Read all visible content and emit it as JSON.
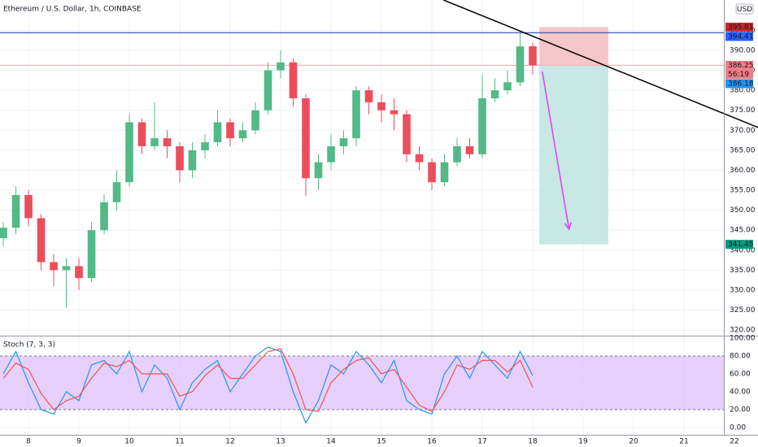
{
  "chart_data": {
    "type": "candlestick",
    "title": "Ethereum / U.S. Dollar, 1h, COINBASE",
    "currency": "USD",
    "x": [
      7.5,
      7.75,
      8,
      8.25,
      8.5,
      8.75,
      9,
      9.25,
      9.5,
      9.75,
      10,
      10.25,
      10.5,
      10.75,
      11,
      11.25,
      11.5,
      11.75,
      12,
      12.25,
      12.5,
      12.75,
      13,
      13.25,
      13.5,
      13.75,
      14,
      14.25,
      14.5,
      14.75,
      15,
      15.25,
      15.5,
      15.75,
      16,
      16.25,
      16.5,
      16.75,
      17,
      17.25,
      17.5,
      17.75,
      18
    ],
    "open": [
      343,
      345.6,
      353.8,
      348,
      337,
      335,
      336,
      333,
      345,
      352,
      357,
      372,
      366,
      368,
      366,
      360,
      365,
      367,
      372,
      368,
      370,
      375,
      385,
      387,
      378,
      358,
      362,
      366,
      368,
      380,
      377,
      375,
      374,
      364,
      362,
      357,
      362,
      366,
      364,
      378,
      380,
      382,
      391
    ],
    "high": [
      347,
      356,
      355,
      349,
      339,
      338,
      338,
      347,
      354,
      360,
      374,
      373,
      377,
      370,
      367,
      367,
      369,
      375,
      373,
      372,
      377,
      387,
      390,
      388,
      379,
      364,
      369,
      370,
      381,
      381,
      379,
      378,
      375,
      366,
      363,
      364,
      368,
      368,
      384,
      383,
      385,
      394.4,
      392
    ],
    "low": [
      341,
      344,
      346,
      335,
      331,
      325.6,
      330,
      332,
      344,
      350,
      356,
      364,
      365,
      363,
      357,
      358,
      363,
      366,
      366,
      367,
      369,
      374,
      383,
      376,
      353.5,
      355,
      360,
      364,
      366,
      374,
      372,
      370,
      362,
      360,
      355,
      356,
      361,
      363,
      363,
      377,
      379,
      381,
      384
    ],
    "close": [
      345.6,
      353.8,
      348,
      337,
      335,
      336,
      333,
      345,
      352,
      357,
      372,
      366,
      368,
      366,
      360,
      365,
      367,
      372,
      368,
      370,
      375,
      385,
      387,
      378,
      358,
      362,
      366,
      368,
      380,
      377,
      375,
      374,
      364,
      362,
      357,
      362,
      366,
      364,
      378,
      380,
      382,
      391,
      386.25
    ],
    "up_color": "#53b987",
    "down_color": "#eb4d5c",
    "xlim": [
      7.435,
      22.468
    ],
    "xticks": [
      8,
      9,
      10,
      11,
      12,
      13,
      14,
      15,
      16,
      17,
      18,
      19,
      20,
      21,
      22
    ],
    "ylim": [
      318.6,
      402.6
    ],
    "yticks": [
      {
        "value": 320,
        "label": "320.00"
      },
      {
        "value": 325,
        "label": "325.00"
      },
      {
        "value": 330,
        "label": "330.00"
      },
      {
        "value": 335,
        "label": "335.00"
      },
      {
        "value": 340,
        "label": "340.00"
      },
      {
        "value": 345,
        "label": "345.00"
      },
      {
        "value": 350,
        "label": "350.00"
      },
      {
        "value": 355,
        "label": "355.00"
      },
      {
        "value": 360,
        "label": "360.00"
      },
      {
        "value": 365,
        "label": "365.00"
      },
      {
        "value": 370,
        "label": "370.00"
      },
      {
        "value": 375,
        "label": "375.00"
      },
      {
        "value": 380,
        "label": "380.00"
      },
      {
        "value": 385,
        "label": "385.00"
      },
      {
        "value": 390,
        "label": "390.00"
      },
      {
        "value": 395,
        "label": "395.00"
      }
    ],
    "grid": true,
    "hlines": [
      {
        "value": 394.41,
        "color": "#3f51b5"
      },
      {
        "value": 386.25,
        "color": "#f4b6bb"
      }
    ],
    "price_labels": [
      {
        "value": 395.81,
        "color": "#c62828"
      },
      {
        "value": 394.41,
        "color": "#2962ff"
      },
      {
        "value": 386.25,
        "color": "#ef7c86",
        "countdown": "56:19"
      },
      {
        "value": 386.18,
        "color": "#2196f3"
      },
      {
        "value": 341.45,
        "color": "#089981"
      }
    ],
    "position": {
      "x": [
        18.13,
        19.5
      ],
      "stop": 395.81,
      "entry": 386.25,
      "target": 341.45,
      "stop_color": "#f6c7c9",
      "target_color": "#c7e8e4"
    },
    "trendline": {
      "x": [
        16.23,
        22.47
      ],
      "y": [
        402.6,
        370.7
      ],
      "color": "#000000"
    },
    "arrow": {
      "x": [
        18.19,
        18.72
      ],
      "y": [
        384.7,
        345.2
      ],
      "color": "#e040fb"
    },
    "indicator": {
      "title": "Stoch (7, 3, 3)",
      "ylim": [
        -8.2,
        101.8
      ],
      "yticks": [
        {
          "value": 0,
          "label": "0.00"
        },
        {
          "value": 20,
          "label": "20.00"
        },
        {
          "value": 40,
          "label": "40.00"
        },
        {
          "value": 60,
          "label": "60.00"
        },
        {
          "value": 80,
          "label": "80.00"
        },
        {
          "value": 100,
          "label": "100.00"
        }
      ],
      "band": [
        20,
        80
      ],
      "band_color": "#e1c4fb",
      "series": [
        {
          "color": "#2196f3",
          "values": [
            60,
            85,
            50,
            20,
            15,
            40,
            30,
            70,
            75,
            60,
            85,
            40,
            70,
            55,
            20,
            50,
            65,
            75,
            40,
            60,
            80,
            90,
            85,
            40,
            5,
            30,
            70,
            60,
            85,
            70,
            50,
            75,
            30,
            20,
            15,
            60,
            80,
            55,
            85,
            70,
            55,
            85,
            58
          ]
        },
        {
          "color": "#ef5350",
          "values": [
            55,
            72,
            65,
            38,
            20,
            30,
            35,
            55,
            72,
            68,
            75,
            60,
            60,
            60,
            35,
            40,
            58,
            70,
            55,
            55,
            70,
            85,
            88,
            60,
            20,
            18,
            50,
            65,
            75,
            78,
            60,
            65,
            45,
            25,
            18,
            40,
            70,
            65,
            75,
            75,
            62,
            75,
            45
          ]
        }
      ]
    }
  }
}
